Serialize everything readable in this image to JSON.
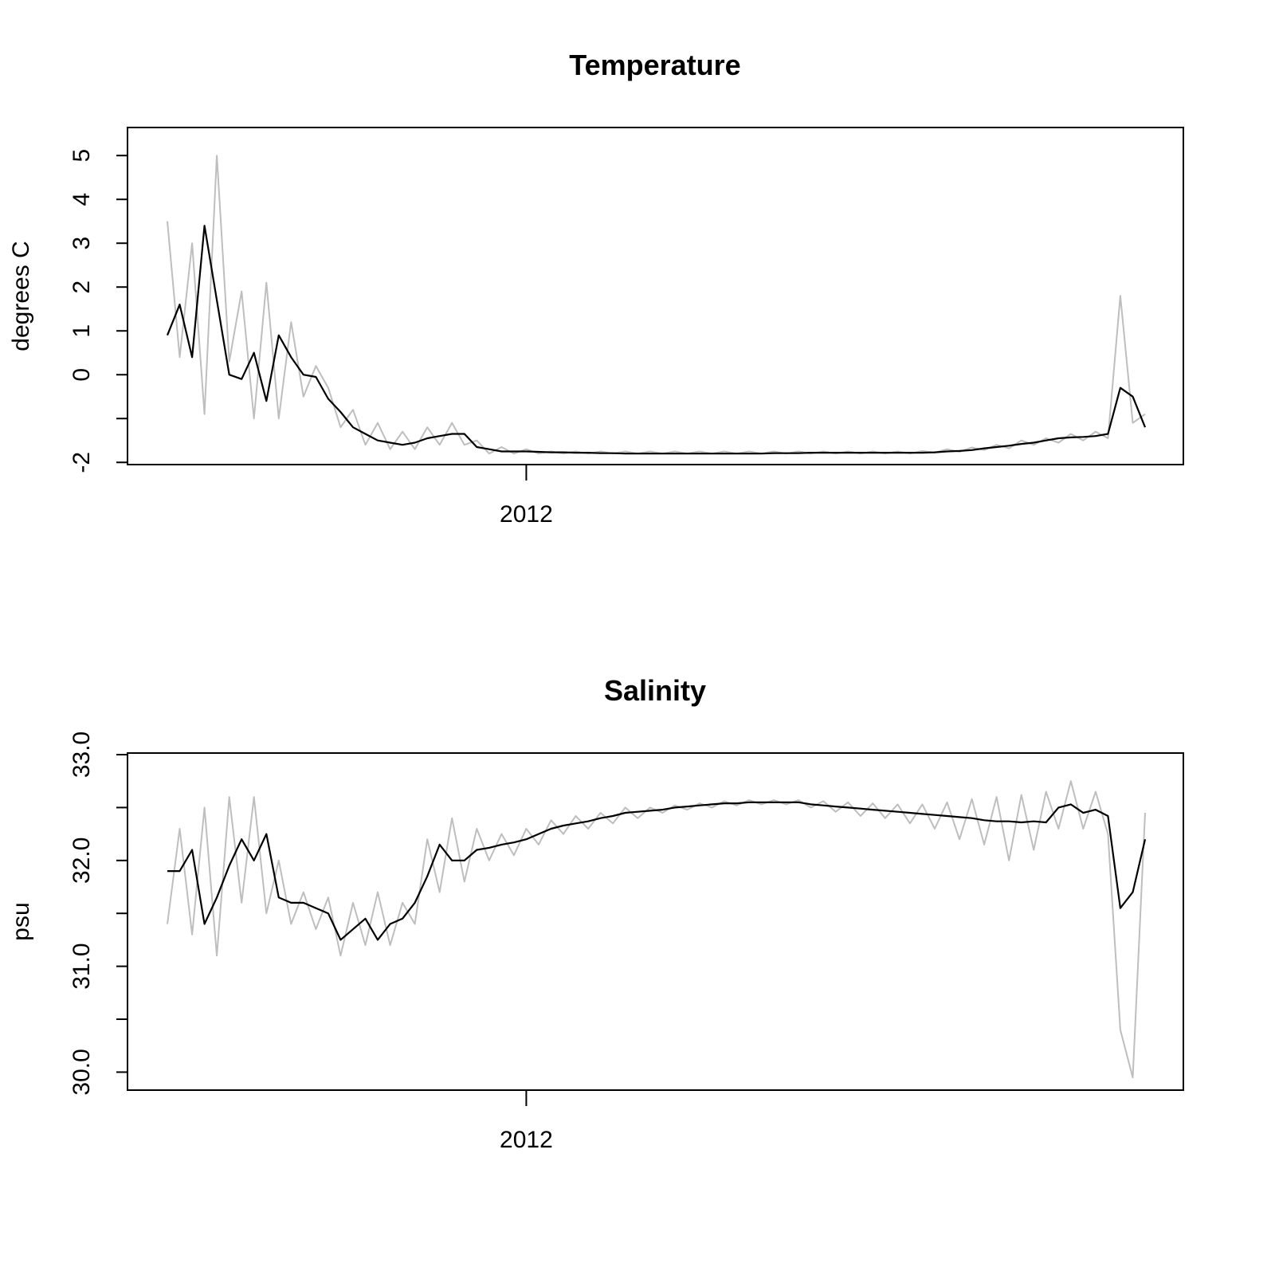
{
  "chart_data": [
    {
      "type": "line",
      "title": "Temperature",
      "y_label": "degrees C",
      "categories": [
        null,
        null,
        null,
        null,
        null,
        null,
        null,
        null,
        null,
        null,
        null,
        null,
        null,
        null,
        null,
        null,
        null,
        null,
        null,
        null,
        null,
        null,
        null,
        null,
        null,
        null,
        null,
        null,
        null,
        "2012",
        null,
        null,
        null,
        null,
        null,
        null,
        null,
        null,
        null,
        null,
        null,
        null,
        null,
        null,
        null,
        null,
        null,
        null,
        null,
        null,
        null,
        null,
        null,
        null,
        null,
        null,
        null,
        null,
        null,
        null,
        null,
        null,
        null,
        null,
        null,
        null,
        null,
        null,
        null,
        null,
        null,
        null,
        null,
        null,
        null,
        null,
        null,
        null,
        null,
        null
      ],
      "series": [
        {
          "color": "#bebebe",
          "values": [
            3.5,
            0.4,
            3.0,
            -0.9,
            5.0,
            0.3,
            1.9,
            -1.0,
            2.1,
            -1.0,
            1.2,
            -0.5,
            0.2,
            -0.3,
            -1.2,
            -0.8,
            -1.6,
            -1.1,
            -1.7,
            -1.3,
            -1.7,
            -1.2,
            -1.6,
            -1.1,
            -1.6,
            -1.5,
            -1.8,
            -1.65,
            -1.8,
            -1.7,
            -1.8,
            -1.75,
            -1.8,
            -1.75,
            -1.8,
            -1.75,
            -1.8,
            -1.75,
            -1.8,
            -1.75,
            -1.8,
            -1.75,
            -1.8,
            -1.75,
            -1.8,
            -1.75,
            -1.8,
            -1.75,
            -1.8,
            -1.75,
            -1.8,
            -1.75,
            -1.8,
            -1.75,
            -1.8,
            -1.75,
            -1.8,
            -1.75,
            -1.8,
            -1.75,
            -1.8,
            -1.74,
            -1.78,
            -1.7,
            -1.76,
            -1.66,
            -1.72,
            -1.6,
            -1.68,
            -1.5,
            -1.6,
            -1.45,
            -1.55,
            -1.35,
            -1.5,
            -1.3,
            -1.45,
            1.8,
            -1.1,
            -0.9
          ]
        },
        {
          "color": "#000000",
          "values": [
            0.9,
            1.6,
            0.4,
            3.4,
            1.7,
            0.0,
            -0.1,
            0.5,
            -0.6,
            0.9,
            0.4,
            0.0,
            -0.05,
            -0.55,
            -0.85,
            -1.2,
            -1.35,
            -1.5,
            -1.55,
            -1.6,
            -1.55,
            -1.45,
            -1.4,
            -1.35,
            -1.35,
            -1.65,
            -1.7,
            -1.75,
            -1.75,
            -1.75,
            -1.76,
            -1.77,
            -1.77,
            -1.78,
            -1.78,
            -1.79,
            -1.79,
            -1.8,
            -1.8,
            -1.8,
            -1.8,
            -1.8,
            -1.8,
            -1.8,
            -1.8,
            -1.8,
            -1.8,
            -1.8,
            -1.8,
            -1.79,
            -1.79,
            -1.79,
            -1.78,
            -1.78,
            -1.78,
            -1.78,
            -1.78,
            -1.78,
            -1.78,
            -1.78,
            -1.78,
            -1.78,
            -1.77,
            -1.75,
            -1.74,
            -1.72,
            -1.68,
            -1.65,
            -1.62,
            -1.58,
            -1.55,
            -1.5,
            -1.45,
            -1.43,
            -1.42,
            -1.4,
            -1.35,
            -0.3,
            -0.5,
            -1.2
          ]
        }
      ],
      "ylim": [
        -2.05,
        5.64
      ],
      "yticks": [
        -2,
        {
          "value": -1,
          "label": null
        },
        0,
        1,
        2,
        3,
        4,
        5
      ]
    },
    {
      "type": "line",
      "title": "Salinity",
      "y_label": "psu",
      "categories": [
        null,
        null,
        null,
        null,
        null,
        null,
        null,
        null,
        null,
        null,
        null,
        null,
        null,
        null,
        null,
        null,
        null,
        null,
        null,
        null,
        null,
        null,
        null,
        null,
        null,
        null,
        null,
        null,
        null,
        "2012",
        null,
        null,
        null,
        null,
        null,
        null,
        null,
        null,
        null,
        null,
        null,
        null,
        null,
        null,
        null,
        null,
        null,
        null,
        null,
        null,
        null,
        null,
        null,
        null,
        null,
        null,
        null,
        null,
        null,
        null,
        null,
        null,
        null,
        null,
        null,
        null,
        null,
        null,
        null,
        null,
        null,
        null,
        null,
        null,
        null,
        null,
        null,
        null,
        null,
        null
      ],
      "series": [
        {
          "color": "#bebebe",
          "values": [
            31.4,
            32.3,
            31.3,
            32.5,
            31.1,
            32.6,
            31.6,
            32.6,
            31.5,
            32.0,
            31.4,
            31.7,
            31.35,
            31.65,
            31.1,
            31.6,
            31.2,
            31.7,
            31.2,
            31.6,
            31.4,
            32.2,
            31.7,
            32.4,
            31.8,
            32.3,
            32.0,
            32.25,
            32.05,
            32.3,
            32.15,
            32.38,
            32.25,
            32.42,
            32.3,
            32.45,
            32.35,
            32.5,
            32.4,
            32.5,
            32.45,
            32.52,
            32.48,
            32.54,
            32.5,
            32.56,
            32.52,
            32.57,
            32.53,
            32.57,
            32.53,
            32.57,
            32.5,
            32.56,
            32.46,
            32.55,
            32.42,
            32.54,
            32.4,
            32.53,
            32.35,
            32.53,
            32.3,
            32.55,
            32.2,
            32.58,
            32.15,
            32.6,
            32.0,
            32.62,
            32.1,
            32.65,
            32.3,
            32.75,
            32.3,
            32.65,
            32.25,
            30.4,
            29.95,
            32.45
          ]
        },
        {
          "color": "#000000",
          "values": [
            31.9,
            31.9,
            32.1,
            31.4,
            31.65,
            31.95,
            32.2,
            32.0,
            32.25,
            31.65,
            31.6,
            31.6,
            31.55,
            31.5,
            31.25,
            31.35,
            31.45,
            31.25,
            31.4,
            31.45,
            31.6,
            31.85,
            32.15,
            32.0,
            32.0,
            32.1,
            32.12,
            32.15,
            32.17,
            32.2,
            32.25,
            32.3,
            32.33,
            32.35,
            32.37,
            32.4,
            32.42,
            32.45,
            32.46,
            32.47,
            32.48,
            32.5,
            32.51,
            32.52,
            32.53,
            32.54,
            32.54,
            32.55,
            32.55,
            32.55,
            32.55,
            32.55,
            32.53,
            32.52,
            32.51,
            32.5,
            32.49,
            32.48,
            32.47,
            32.46,
            32.45,
            32.44,
            32.43,
            32.42,
            32.41,
            32.4,
            32.38,
            32.37,
            32.37,
            32.36,
            32.37,
            32.36,
            32.5,
            32.53,
            32.45,
            32.48,
            32.42,
            31.55,
            31.7,
            32.2
          ]
        }
      ],
      "ylim": [
        29.83,
        33.015
      ],
      "yticks": [
        {
          "value": 30,
          "label": "30.0"
        },
        {
          "value": 30.5,
          "label": null
        },
        {
          "value": 31,
          "label": "31.0"
        },
        {
          "value": 31.5,
          "label": null
        },
        {
          "value": 32,
          "label": "32.0"
        },
        {
          "value": 32.5,
          "label": null
        },
        {
          "value": 33,
          "label": "33.0"
        }
      ]
    }
  ]
}
